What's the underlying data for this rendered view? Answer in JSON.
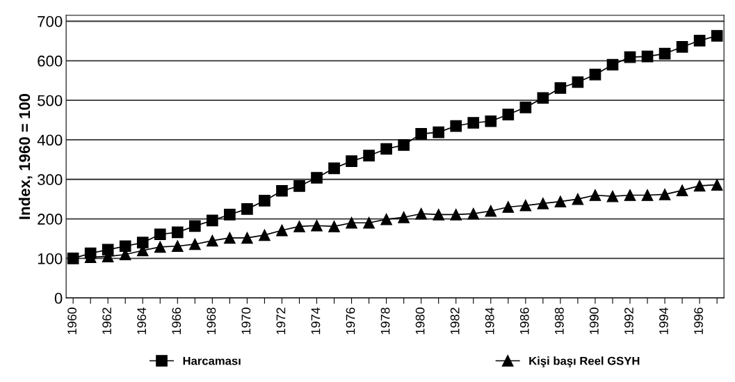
{
  "chart_data": {
    "type": "line",
    "ylabel": "Index, 1960 = 100",
    "x": [
      1960,
      1961,
      1962,
      1963,
      1964,
      1965,
      1966,
      1967,
      1968,
      1969,
      1970,
      1971,
      1972,
      1973,
      1974,
      1975,
      1976,
      1977,
      1978,
      1979,
      1980,
      1981,
      1982,
      1983,
      1984,
      1985,
      1986,
      1987,
      1988,
      1989,
      1990,
      1991,
      1992,
      1993,
      1994,
      1995,
      1996,
      1997
    ],
    "series": [
      {
        "name": "Harcaması",
        "color": "#000000",
        "marker": "square",
        "values": [
          100,
          113,
          122,
          131,
          140,
          161,
          166,
          182,
          196,
          211,
          225,
          246,
          271,
          283,
          304,
          328,
          346,
          360,
          377,
          387,
          415,
          419,
          435,
          443,
          447,
          464,
          482,
          506,
          531,
          546,
          565,
          590,
          609,
          611,
          618,
          635,
          651,
          663
        ]
      },
      {
        "name": "Kişi başı Reel GSYH",
        "color": "#000000",
        "marker": "triangle",
        "values": [
          null,
          103,
          105,
          110,
          120,
          129,
          131,
          136,
          145,
          152,
          152,
          159,
          171,
          181,
          183,
          181,
          190,
          190,
          199,
          204,
          213,
          211,
          211,
          213,
          220,
          230,
          234,
          239,
          244,
          250,
          260,
          257,
          260,
          260,
          262,
          272,
          284,
          286
        ]
      }
    ],
    "xlim": [
      1959.6,
      1997.4
    ],
    "xticks": [
      1960,
      {
        "value": 1961,
        "label": null
      },
      1962,
      {
        "value": 1963,
        "label": null
      },
      1964,
      {
        "value": 1965,
        "label": null
      },
      1966,
      {
        "value": 1967,
        "label": null
      },
      1968,
      {
        "value": 1969,
        "label": null
      },
      1970,
      {
        "value": 1971,
        "label": null
      },
      1972,
      {
        "value": 1973,
        "label": null
      },
      1974,
      {
        "value": 1975,
        "label": null
      },
      1976,
      {
        "value": 1977,
        "label": null
      },
      1978,
      {
        "value": 1979,
        "label": null
      },
      1980,
      {
        "value": 1981,
        "label": null
      },
      1982,
      {
        "value": 1983,
        "label": null
      },
      1984,
      {
        "value": 1985,
        "label": null
      },
      1986,
      {
        "value": 1987,
        "label": null
      },
      1988,
      {
        "value": 1989,
        "label": null
      },
      1990,
      {
        "value": 1991,
        "label": null
      },
      1992,
      {
        "value": 1993,
        "label": null
      },
      1994,
      {
        "value": 1995,
        "label": null
      },
      1996,
      {
        "value": 1997,
        "label": null
      }
    ],
    "ylim": [
      0,
      715
    ],
    "yticks": [
      0,
      100,
      200,
      300,
      400,
      500,
      600,
      700
    ],
    "grid": "y",
    "legend": "bottom",
    "line_style": "solid"
  }
}
